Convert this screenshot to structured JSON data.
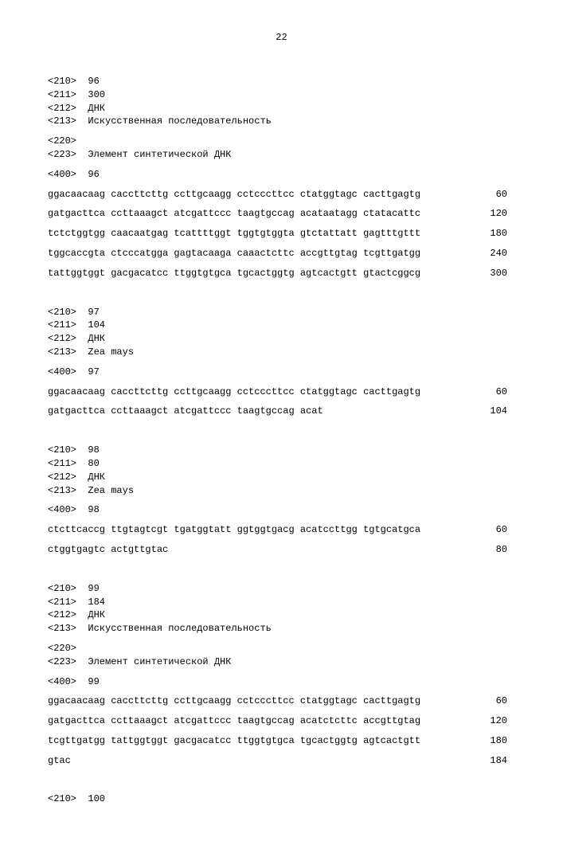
{
  "page_number": "22",
  "entries": [
    {
      "headers": [
        {
          "tag": "<210>",
          "value": "96"
        },
        {
          "tag": "<211>",
          "value": "300"
        },
        {
          "tag": "<212>",
          "value": "ДНК"
        },
        {
          "tag": "<213>",
          "value": "Искусственная последовательность"
        }
      ],
      "features": [
        {
          "tag": "<220>",
          "value": ""
        },
        {
          "tag": "<223>",
          "value": "Элемент синтетической ДНК"
        }
      ],
      "origin": {
        "tag": "<400>",
        "value": "96"
      },
      "sequence": [
        {
          "text": "ggacaacaag caccttcttg ccttgcaagg cctcccttcc ctatggtagc cacttgagtg",
          "num": "60"
        },
        {
          "text": "gatgacttca ccttaaagct atcgattccc taagtgccag acataatagg ctatacattc",
          "num": "120"
        },
        {
          "text": "tctctggtgg caacaatgag tcattttggt tggtgtggta gtctattatt gagtttgttt",
          "num": "180"
        },
        {
          "text": "tggcaccgta ctcccatgga gagtacaaga caaactcttc accgttgtag tcgttgatgg",
          "num": "240"
        },
        {
          "text": "tattggtggt gacgacatcc ttggtgtgca tgcactggtg agtcactgtt gtactcggcg",
          "num": "300"
        }
      ]
    },
    {
      "headers": [
        {
          "tag": "<210>",
          "value": "97"
        },
        {
          "tag": "<211>",
          "value": "104"
        },
        {
          "tag": "<212>",
          "value": "ДНК"
        },
        {
          "tag": "<213>",
          "value": "Zea mays"
        }
      ],
      "features": [],
      "origin": {
        "tag": "<400>",
        "value": "97"
      },
      "sequence": [
        {
          "text": "ggacaacaag caccttcttg ccttgcaagg cctcccttcc ctatggtagc cacttgagtg",
          "num": "60"
        },
        {
          "text": "gatgacttca ccttaaagct atcgattccc taagtgccag acat",
          "num": "104"
        }
      ]
    },
    {
      "headers": [
        {
          "tag": "<210>",
          "value": "98"
        },
        {
          "tag": "<211>",
          "value": "80"
        },
        {
          "tag": "<212>",
          "value": "ДНК"
        },
        {
          "tag": "<213>",
          "value": "Zea mays"
        }
      ],
      "features": [],
      "origin": {
        "tag": "<400>",
        "value": "98"
      },
      "sequence": [
        {
          "text": "ctcttcaccg ttgtagtcgt tgatggtatt ggtggtgacg acatccttgg tgtgcatgca",
          "num": "60"
        },
        {
          "text": "ctggtgagtc actgttgtac",
          "num": "80"
        }
      ]
    },
    {
      "headers": [
        {
          "tag": "<210>",
          "value": "99"
        },
        {
          "tag": "<211>",
          "value": "184"
        },
        {
          "tag": "<212>",
          "value": "ДНК"
        },
        {
          "tag": "<213>",
          "value": "Искусственная последовательность"
        }
      ],
      "features": [
        {
          "tag": "<220>",
          "value": ""
        },
        {
          "tag": "<223>",
          "value": "Элемент синтетической ДНК"
        }
      ],
      "origin": {
        "tag": "<400>",
        "value": "99"
      },
      "sequence": [
        {
          "text": "ggacaacaag caccttcttg ccttgcaagg cctcccttcc ctatggtagc cacttgagtg",
          "num": "60"
        },
        {
          "text": "gatgacttca ccttaaagct atcgattccc taagtgccag acatctcttc accgttgtag",
          "num": "120"
        },
        {
          "text": "tcgttgatgg tattggtggt gacgacatcc ttggtgtgca tgcactggtg agtcactgtt",
          "num": "180"
        },
        {
          "text": "gtac",
          "num": "184"
        }
      ]
    },
    {
      "headers": [
        {
          "tag": "<210>",
          "value": "100"
        }
      ],
      "features": [],
      "origin": null,
      "sequence": []
    }
  ]
}
